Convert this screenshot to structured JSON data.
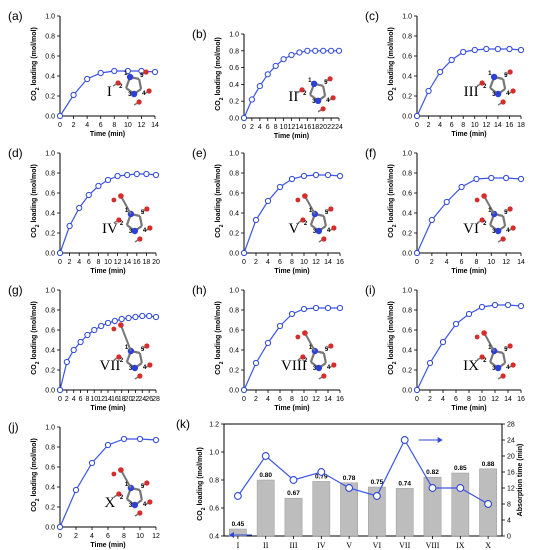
{
  "colors": {
    "line": "#3b55e6",
    "marker_edge": "#2e47d8",
    "bar": "#bdbdbd",
    "axis": "#000000",
    "atom_red": "#d62c2c",
    "atom_blue": "#2c3fd6",
    "atom_grey": "#8a8a8a"
  },
  "atom_labels": [
    "1",
    "2",
    "3",
    "4",
    "5"
  ],
  "chart_data": [
    {
      "panel": "(a)",
      "type": "line",
      "roman": "I",
      "xlabel": "Time (min)",
      "ylabel": "CO2 loading (mol/mol)",
      "xlim": [
        0,
        14
      ],
      "xticks": [
        0,
        2,
        4,
        6,
        8,
        10,
        12,
        14
      ],
      "ylim": [
        0.0,
        1.0
      ],
      "yticks": [
        "0.0",
        "0.2",
        "0.4",
        "0.6",
        "0.8",
        "1.0"
      ],
      "x": [
        0,
        2,
        4,
        6,
        8,
        10,
        12,
        14
      ],
      "y": [
        0.0,
        0.21,
        0.37,
        0.43,
        0.45,
        0.45,
        0.45,
        0.44
      ]
    },
    {
      "panel": "(b)",
      "type": "line",
      "roman": "II",
      "xlabel": "Time (min)",
      "ylabel": "CO2 loading (mol/mol)",
      "xlim": [
        0,
        24
      ],
      "xticks": [
        0,
        2,
        4,
        6,
        8,
        10,
        12,
        14,
        16,
        18,
        20,
        22,
        24
      ],
      "ylim": [
        0.0,
        1.0
      ],
      "yticks": [
        "0.0",
        "0.2",
        "0.4",
        "0.6",
        "0.8",
        "1.0"
      ],
      "x": [
        0,
        2,
        4,
        6,
        8,
        10,
        12,
        14,
        16,
        18,
        20,
        22,
        24
      ],
      "y": [
        0.0,
        0.22,
        0.38,
        0.52,
        0.62,
        0.7,
        0.75,
        0.78,
        0.8,
        0.8,
        0.8,
        0.8,
        0.8
      ]
    },
    {
      "panel": "(c)",
      "type": "line",
      "roman": "III",
      "xlabel": "Time (min)",
      "ylabel": "CO2 loading (mol/mol)",
      "xlim": [
        0,
        18
      ],
      "xticks": [
        0,
        2,
        4,
        6,
        8,
        10,
        12,
        14,
        16,
        18
      ],
      "ylim": [
        0.0,
        1.0
      ],
      "yticks": [
        "0.0",
        "0.2",
        "0.4",
        "0.6",
        "0.8",
        "1.0"
      ],
      "x": [
        0,
        2,
        4,
        6,
        8,
        10,
        12,
        14,
        16,
        18
      ],
      "y": [
        0.0,
        0.25,
        0.44,
        0.56,
        0.64,
        0.66,
        0.67,
        0.67,
        0.67,
        0.66
      ]
    },
    {
      "panel": "(d)",
      "type": "line",
      "roman": "IV",
      "xlabel": "Time (min)",
      "ylabel": "CO2 loading (mol/mol)",
      "xlim": [
        0,
        20
      ],
      "xticks": [
        0,
        2,
        4,
        6,
        8,
        10,
        12,
        14,
        16,
        18,
        20
      ],
      "ylim": [
        0.0,
        1.0
      ],
      "yticks": [
        "0.0",
        "0.2",
        "0.4",
        "0.6",
        "0.8",
        "1.0"
      ],
      "x": [
        0,
        2,
        4,
        6,
        8,
        10,
        12,
        14,
        16,
        18,
        20
      ],
      "y": [
        0.0,
        0.27,
        0.45,
        0.58,
        0.67,
        0.73,
        0.77,
        0.78,
        0.79,
        0.79,
        0.78
      ]
    },
    {
      "panel": "(e)",
      "type": "line",
      "roman": "V",
      "xlabel": "Time (min)",
      "ylabel": "CO2 loading (mol/mol)",
      "xlim": [
        0,
        16
      ],
      "xticks": [
        0,
        2,
        4,
        6,
        8,
        10,
        12,
        14,
        16
      ],
      "ylim": [
        0.0,
        1.0
      ],
      "yticks": [
        "0.0",
        "0.2",
        "0.4",
        "0.6",
        "0.8",
        "1.0"
      ],
      "x": [
        0,
        2,
        4,
        6,
        8,
        10,
        12,
        14,
        16
      ],
      "y": [
        0.0,
        0.33,
        0.52,
        0.66,
        0.74,
        0.77,
        0.78,
        0.78,
        0.77
      ]
    },
    {
      "panel": "(f)",
      "type": "line",
      "roman": "VI",
      "xlabel": "Time (min)",
      "ylabel": "CO2 loading (mol/mol)",
      "xlim": [
        0,
        14
      ],
      "xticks": [
        0,
        2,
        4,
        6,
        8,
        10,
        12,
        14
      ],
      "ylim": [
        0.0,
        1.0
      ],
      "yticks": [
        "0.0",
        "0.2",
        "0.4",
        "0.6",
        "0.8",
        "1.0"
      ],
      "x": [
        0,
        2,
        4,
        6,
        8,
        10,
        12,
        14
      ],
      "y": [
        0.0,
        0.33,
        0.51,
        0.66,
        0.74,
        0.75,
        0.75,
        0.74
      ]
    },
    {
      "panel": "(g)",
      "type": "line",
      "roman": "VII",
      "xlabel": "Time (min)",
      "ylabel": "CO2 loading (mol/mol)",
      "xlim": [
        0,
        28
      ],
      "xticks": [
        0,
        2,
        4,
        6,
        8,
        10,
        12,
        14,
        16,
        18,
        20,
        22,
        24,
        26,
        28
      ],
      "ylim": [
        0.0,
        1.0
      ],
      "yticks": [
        "0.0",
        "0.2",
        "0.4",
        "0.6",
        "0.8",
        "1.0"
      ],
      "x": [
        0,
        2,
        4,
        6,
        8,
        10,
        12,
        14,
        16,
        18,
        20,
        22,
        24,
        26,
        28
      ],
      "y": [
        0.0,
        0.28,
        0.4,
        0.48,
        0.55,
        0.6,
        0.64,
        0.67,
        0.69,
        0.71,
        0.72,
        0.73,
        0.74,
        0.74,
        0.73
      ]
    },
    {
      "panel": "(h)",
      "type": "line",
      "roman": "VIII",
      "xlabel": "Time (min)",
      "ylabel": "CO2 loading (mol/mol)",
      "xlim": [
        0,
        16
      ],
      "xticks": [
        0,
        2,
        4,
        6,
        8,
        10,
        12,
        14,
        16
      ],
      "ylim": [
        0.0,
        1.0
      ],
      "yticks": [
        "0.0",
        "0.2",
        "0.4",
        "0.6",
        "0.8",
        "1.0"
      ],
      "x": [
        0,
        2,
        4,
        6,
        8,
        10,
        12,
        14,
        16
      ],
      "y": [
        0.0,
        0.27,
        0.47,
        0.64,
        0.76,
        0.81,
        0.82,
        0.82,
        0.82
      ]
    },
    {
      "panel": "(i)",
      "type": "line",
      "roman": "IX",
      "xlabel": "Time (min)",
      "ylabel": "CO2 loading (mol/mol)",
      "xlim": [
        0,
        16
      ],
      "xticks": [
        0,
        2,
        4,
        6,
        8,
        10,
        12,
        14,
        16
      ],
      "ylim": [
        0.0,
        1.0
      ],
      "yticks": [
        "0.0",
        "0.2",
        "0.4",
        "0.6",
        "0.8",
        "1.0"
      ],
      "x": [
        0,
        2,
        4,
        6,
        8,
        10,
        12,
        14,
        16
      ],
      "y": [
        0.0,
        0.27,
        0.48,
        0.66,
        0.76,
        0.83,
        0.85,
        0.85,
        0.84
      ]
    },
    {
      "panel": "(j)",
      "type": "line",
      "roman": "X",
      "xlabel": "Time (min)",
      "ylabel": "CO2 loading (mol/mol)",
      "xlim": [
        0,
        12
      ],
      "xticks": [
        0,
        2,
        4,
        6,
        8,
        10,
        12
      ],
      "ylim": [
        0.0,
        1.0
      ],
      "yticks": [
        "0.0",
        "0.2",
        "0.4",
        "0.6",
        "0.8",
        "1.0"
      ],
      "x": [
        0,
        2,
        4,
        6,
        8,
        10,
        12
      ],
      "y": [
        0.0,
        0.37,
        0.64,
        0.82,
        0.88,
        0.88,
        0.87
      ]
    },
    {
      "panel": "(k)",
      "type": "bar",
      "ylabel": "CO2 loading (mol/mol)",
      "y2label": "Absorption time (min)",
      "categories": [
        "I",
        "II",
        "III",
        "IV",
        "V",
        "VI",
        "VII",
        "VIII",
        "IX",
        "X"
      ],
      "ylim": [
        0.4,
        1.2
      ],
      "yticks": [
        "0.4",
        "0.6",
        "0.8",
        "1.0",
        "1.2"
      ],
      "y2lim": [
        0,
        28
      ],
      "y2ticks": [
        "0",
        "4",
        "8",
        "12",
        "16",
        "20",
        "24",
        "28"
      ],
      "bar_values": [
        0.45,
        0.8,
        0.67,
        0.79,
        0.78,
        0.75,
        0.74,
        0.82,
        0.85,
        0.88
      ],
      "bar_labels": [
        "0.45",
        "0.80",
        "0.67",
        "0.79",
        "0.78",
        "0.75",
        "0.74",
        "0.82",
        "0.85",
        "0.88"
      ],
      "line_values": [
        10,
        20,
        14,
        16,
        12,
        10,
        24,
        12,
        12,
        8
      ]
    }
  ]
}
